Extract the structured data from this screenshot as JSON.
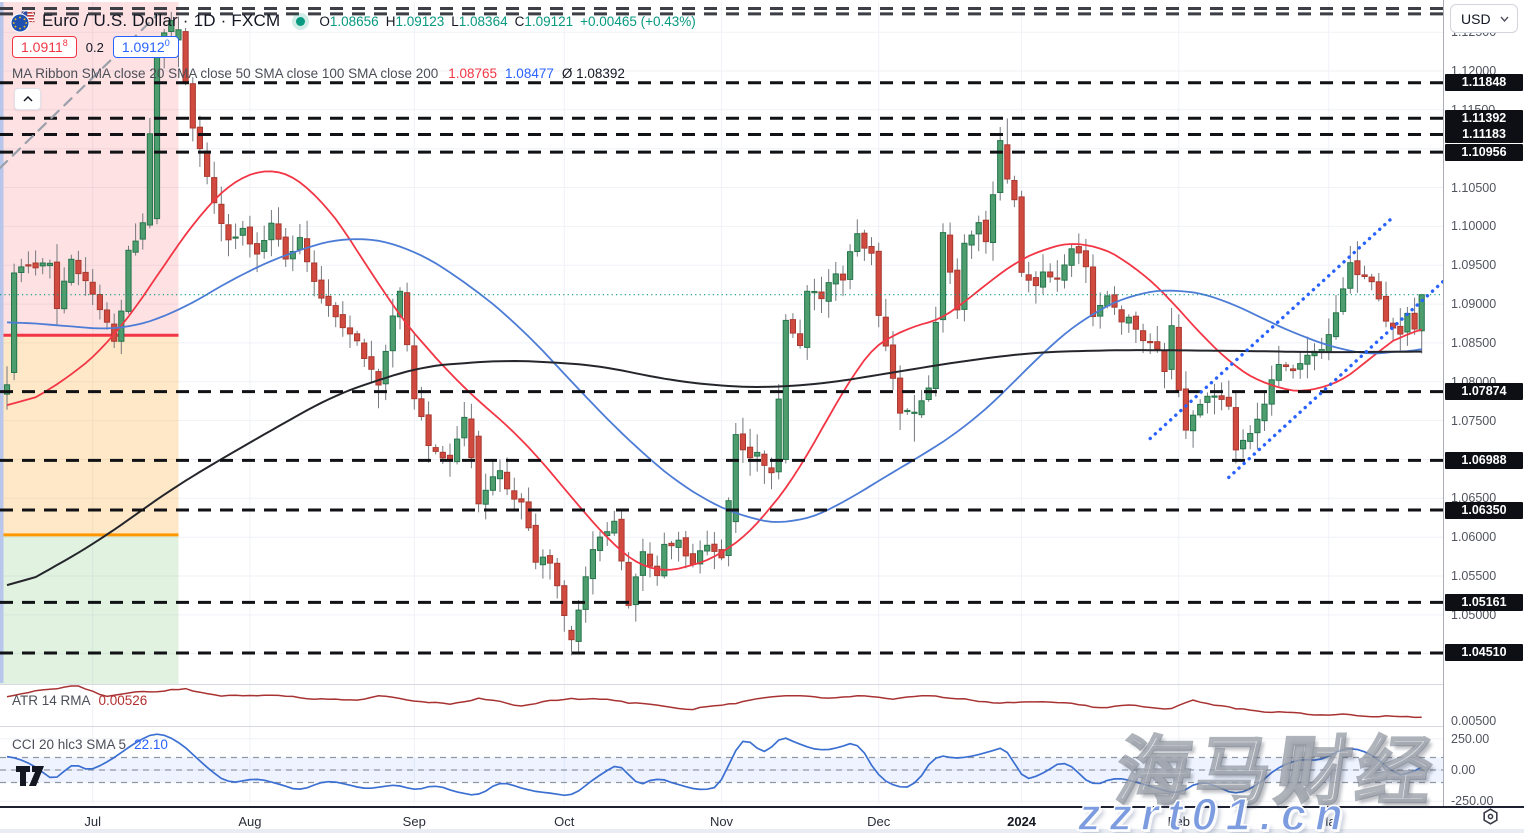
{
  "header": {
    "title": "Euro / U.S. Dollar · 1D · FXCM",
    "ohlc": {
      "o_label": "O",
      "o": "1.08656",
      "h_label": "H",
      "h": "1.09123",
      "l_label": "L",
      "l": "1.08364",
      "c_label": "C",
      "c": "1.09121",
      "change": "+0.00465 (+0.43%)"
    },
    "bid": {
      "main": "1.0911",
      "sup": "8"
    },
    "spread": "0.2",
    "ask": {
      "main": "1.0912",
      "sup": "0"
    },
    "ma_ribbon": {
      "label": "MA Ribbon SMA close 20 SMA close 50 SMA close 100 SMA close 200",
      "sma20": "1.08765",
      "sma50": "1.08477",
      "avg": "Ø 1.08392"
    }
  },
  "price_axis": {
    "currency": "USD",
    "gray_labels": [
      "1.12500",
      "1.12000",
      "1.11500",
      "1.10500",
      "1.10000",
      "1.09500",
      "1.09000",
      "1.08500",
      "1.08000",
      "1.07500",
      "1.06500",
      "1.06000",
      "1.05500",
      "1.05000"
    ],
    "badges": [
      "1.11848",
      "1.11392",
      "1.11183",
      "1.10956",
      "1.07874",
      "1.06988",
      "1.06350",
      "1.05161",
      "1.04510"
    ]
  },
  "indicators": {
    "atr": {
      "label": "ATR 14 RMA",
      "value": "0.00526",
      "axis_label": "0.00500"
    },
    "cci": {
      "label": "CCI 20 hlc3 SMA 5",
      "value": "22.10",
      "axis_labels": [
        "250.00",
        "0.00",
        "-250.00"
      ]
    }
  },
  "time_axis": {
    "months": [
      {
        "label": "Jul",
        "day": 12
      },
      {
        "label": "Aug",
        "day": 34
      },
      {
        "label": "Sep",
        "day": 57
      },
      {
        "label": "Oct",
        "day": 78
      },
      {
        "label": "Nov",
        "day": 100
      },
      {
        "label": "Dec",
        "day": 122
      },
      {
        "label": "2024",
        "day": 142,
        "year": true
      },
      {
        "label": "Feb",
        "day": 164
      },
      {
        "label": "Mar",
        "day": 185
      }
    ]
  },
  "watermark": {
    "brand": "海马财经",
    "url": "zzrt01.cn"
  },
  "colors": {
    "up_fill": "#4e9d6e",
    "up_border": "#27754c",
    "down_fill": "#d04a3f",
    "down_border": "#a93a31",
    "wick": "#75797e",
    "sma20": "#f23645",
    "sma50": "#4d7cd6",
    "sma200": "#24262b",
    "atr_line": "#a83232",
    "cci_line": "#3b6fd1",
    "level": "#101215",
    "level_top": "#3c3f46",
    "trend_blue": "#2962ff",
    "current": "#089981",
    "grid": "#f0f2f7",
    "band_fill": "rgba(41,98,255,0.08)",
    "band_line": "#9097a5",
    "zone_red": "rgba(242,54,69,0.15)",
    "zone_orange": "rgba(255,152,0,0.22)",
    "zone_green": "rgba(76,175,80,0.17)",
    "zone_red_line": "#f23645",
    "zone_orange_line": "#ff9800",
    "left_strip": "#b7c6ea",
    "diag": "#9aa0ab"
  },
  "chart_data": {
    "type": "candlestick",
    "symbol": "Euro / U.S. Dollar",
    "interval": "1D",
    "exchange": "FXCM",
    "days": 199,
    "visible_price_range": [
      1.0413,
      1.1291
    ],
    "price_tick_step": 0.005,
    "seed": 42,
    "last_candle": {
      "open": 1.08656,
      "high": 1.09123,
      "low": 1.08364,
      "close": 1.09121,
      "change": 0.00465,
      "change_pct": 0.43
    },
    "close_pivots": [
      [
        0,
        1.0795
      ],
      [
        1,
        1.094
      ],
      [
        3,
        1.0948
      ],
      [
        6,
        1.0955
      ],
      [
        7,
        1.0893
      ],
      [
        9,
        1.0958
      ],
      [
        12,
        1.091
      ],
      [
        14,
        1.088
      ],
      [
        15,
        1.0852
      ],
      [
        16,
        1.0889
      ],
      [
        17,
        1.0968
      ],
      [
        19,
        1.1005
      ],
      [
        21,
        1.1226
      ],
      [
        23,
        1.127
      ],
      [
        24,
        1.1253
      ],
      [
        26,
        1.113
      ],
      [
        28,
        1.1064
      ],
      [
        31,
        1.0979
      ],
      [
        33,
        1.0994
      ],
      [
        35,
        1.0965
      ],
      [
        37,
        1.1009
      ],
      [
        39,
        1.0957
      ],
      [
        41,
        1.0984
      ],
      [
        44,
        1.0905
      ],
      [
        47,
        1.0873
      ],
      [
        49,
        1.0855
      ],
      [
        52,
        1.0794
      ],
      [
        54,
        1.088
      ],
      [
        55,
        1.0921
      ],
      [
        56,
        1.0843
      ],
      [
        57,
        1.0779
      ],
      [
        59,
        1.0722
      ],
      [
        62,
        1.07
      ],
      [
        64,
        1.0753
      ],
      [
        66,
        1.0643
      ],
      [
        67,
        1.0658
      ],
      [
        69,
        1.0688
      ],
      [
        70,
        1.066
      ],
      [
        72,
        1.0645
      ],
      [
        74,
        1.0572
      ],
      [
        76,
        1.0566
      ],
      [
        78,
        1.05
      ],
      [
        79,
        1.0468
      ],
      [
        81,
        1.0548
      ],
      [
        82,
        1.0586
      ],
      [
        85,
        1.0621
      ],
      [
        87,
        1.051
      ],
      [
        89,
        1.0577
      ],
      [
        91,
        1.055
      ],
      [
        92,
        1.0593
      ],
      [
        94,
        1.0594
      ],
      [
        96,
        1.0562
      ],
      [
        98,
        1.0594
      ],
      [
        100,
        1.057
      ],
      [
        102,
        1.0732
      ],
      [
        104,
        1.07
      ],
      [
        105,
        1.0707
      ],
      [
        107,
        1.0684
      ],
      [
        109,
        1.0879
      ],
      [
        111,
        1.085
      ],
      [
        112,
        1.0915
      ],
      [
        114,
        1.0909
      ],
      [
        116,
        1.094
      ],
      [
        117,
        1.0935
      ],
      [
        119,
        1.0992
      ],
      [
        121,
        1.0963
      ],
      [
        122,
        1.0884
      ],
      [
        124,
        1.08
      ],
      [
        125,
        1.0763
      ],
      [
        127,
        1.0761
      ],
      [
        129,
        1.0797
      ],
      [
        130,
        1.0874
      ],
      [
        131,
        1.0992
      ],
      [
        133,
        1.0895
      ],
      [
        134,
        1.098
      ],
      [
        136,
        1.1008
      ],
      [
        137,
        1.0975
      ],
      [
        139,
        1.1105
      ],
      [
        140,
        1.1061
      ],
      [
        141,
        1.1038
      ],
      [
        142,
        1.0941
      ],
      [
        144,
        1.0925
      ],
      [
        145,
        1.0942
      ],
      [
        147,
        1.093
      ],
      [
        149,
        1.0973
      ],
      [
        151,
        1.095
      ],
      [
        152,
        1.0884
      ],
      [
        154,
        1.091
      ],
      [
        156,
        1.088
      ],
      [
        157,
        1.0885
      ],
      [
        159,
        1.0855
      ],
      [
        161,
        1.0845
      ],
      [
        162,
        1.0817
      ],
      [
        163,
        1.087
      ],
      [
        164,
        1.0789
      ],
      [
        165,
        1.0742
      ],
      [
        167,
        1.0776
      ],
      [
        169,
        1.0785
      ],
      [
        171,
        1.077
      ],
      [
        172,
        1.071
      ],
      [
        174,
        1.073
      ],
      [
        176,
        1.0775
      ],
      [
        178,
        1.0822
      ],
      [
        180,
        1.081
      ],
      [
        182,
        1.0838
      ],
      [
        184,
        1.0838
      ],
      [
        186,
        1.089
      ],
      [
        188,
        1.0948
      ],
      [
        189,
        1.0938
      ],
      [
        191,
        1.0925
      ],
      [
        193,
        1.0883
      ],
      [
        195,
        1.0865
      ],
      [
        196,
        1.0888
      ],
      [
        197,
        1.0866
      ],
      [
        198,
        1.09121
      ]
    ],
    "overrides": {
      "1": {
        "o": 1.0812,
        "c": 1.094,
        "l": 1.0802,
        "h": 1.0952
      },
      "21": {
        "o": 1.101,
        "c": 1.1226,
        "l": 1.1003,
        "h": 1.1235
      },
      "23": {
        "h": 1.1276
      },
      "24": {
        "o": 1.124,
        "c": 1.1253,
        "h": 1.127,
        "l": 1.1205
      },
      "52": {
        "l": 1.0766
      },
      "66": {
        "o": 1.073,
        "c": 1.0643,
        "l": 1.0632,
        "h": 1.0737
      },
      "79": {
        "o": 1.048,
        "c": 1.0468,
        "l": 1.0448
      },
      "102": {
        "o": 1.062,
        "c": 1.0732,
        "h": 1.0747
      },
      "109": {
        "o": 1.07,
        "c": 1.0879,
        "l": 1.0695,
        "h": 1.0887
      },
      "119": {
        "h": 1.1009
      },
      "127": {
        "l": 1.0723
      },
      "131": {
        "o": 1.088,
        "c": 1.0992,
        "h": 1.1004
      },
      "140": {
        "o": 1.1105,
        "c": 1.1061,
        "h": 1.1139,
        "l": 1.1055
      },
      "142": {
        "o": 1.1038,
        "c": 1.0941,
        "h": 1.1046,
        "l": 1.0935
      },
      "164": {
        "o": 1.087,
        "c": 1.0789,
        "l": 1.078
      },
      "172": {
        "l": 1.0695
      },
      "189": {
        "h": 1.0981
      },
      "198": {
        "o": 1.08656,
        "h": 1.09123,
        "l": 1.08364,
        "c": 1.09121
      }
    },
    "sma20": [
      [
        0,
        1.076
      ],
      [
        8,
        1.08
      ],
      [
        15,
        1.0855
      ],
      [
        22,
        1.095
      ],
      [
        28,
        1.103
      ],
      [
        33,
        1.1068
      ],
      [
        37,
        1.1078
      ],
      [
        42,
        1.1058
      ],
      [
        46,
        1.101
      ],
      [
        50,
        1.096
      ],
      [
        53,
        1.0905
      ],
      [
        57,
        1.0862
      ],
      [
        64,
        1.079
      ],
      [
        72,
        1.0729
      ],
      [
        80,
        1.064
      ],
      [
        86,
        1.0578
      ],
      [
        90,
        1.0552
      ],
      [
        95,
        1.056
      ],
      [
        101,
        1.058
      ],
      [
        106,
        1.0625
      ],
      [
        112,
        1.07
      ],
      [
        118,
        1.081
      ],
      [
        124,
        1.0872
      ],
      [
        128,
        1.0866
      ],
      [
        134,
        1.09
      ],
      [
        140,
        1.095
      ],
      [
        146,
        1.0975
      ],
      [
        151,
        1.0983
      ],
      [
        158,
        1.095
      ],
      [
        164,
        1.0895
      ],
      [
        170,
        1.083
      ],
      [
        177,
        1.079
      ],
      [
        184,
        1.0786
      ],
      [
        190,
        1.082
      ],
      [
        194,
        1.0858
      ],
      [
        198,
        1.0877
      ]
    ],
    "sma50": [
      [
        0,
        1.0878
      ],
      [
        8,
        1.0872
      ],
      [
        16,
        1.0866
      ],
      [
        24,
        1.089
      ],
      [
        32,
        1.0935
      ],
      [
        40,
        1.0968
      ],
      [
        48,
        1.0988
      ],
      [
        56,
        1.0975
      ],
      [
        64,
        1.093
      ],
      [
        72,
        1.087
      ],
      [
        80,
        1.079
      ],
      [
        88,
        1.0715
      ],
      [
        96,
        1.0655
      ],
      [
        104,
        1.0622
      ],
      [
        110,
        1.0616
      ],
      [
        116,
        1.0638
      ],
      [
        122,
        1.0673
      ],
      [
        128,
        1.0705
      ],
      [
        134,
        1.074
      ],
      [
        140,
        1.079
      ],
      [
        146,
        1.0848
      ],
      [
        152,
        1.089
      ],
      [
        158,
        1.0915
      ],
      [
        164,
        1.092
      ],
      [
        170,
        1.0908
      ],
      [
        176,
        1.088
      ],
      [
        182,
        1.0855
      ],
      [
        188,
        1.0838
      ],
      [
        193,
        1.0833
      ],
      [
        198,
        1.0848
      ]
    ],
    "sma200": [
      [
        0,
        1.0528
      ],
      [
        12,
        1.059
      ],
      [
        24,
        1.0668
      ],
      [
        34,
        1.0722
      ],
      [
        46,
        1.0784
      ],
      [
        58,
        1.082
      ],
      [
        70,
        1.0828
      ],
      [
        82,
        1.0822
      ],
      [
        94,
        1.08
      ],
      [
        104,
        1.0792
      ],
      [
        114,
        1.0797
      ],
      [
        124,
        1.0812
      ],
      [
        134,
        1.0827
      ],
      [
        144,
        1.0838
      ],
      [
        156,
        1.0841
      ],
      [
        170,
        1.084
      ],
      [
        185,
        1.0838
      ],
      [
        198,
        1.0839
      ]
    ],
    "atr14": [
      [
        0,
        0.0071
      ],
      [
        5,
        0.0078
      ],
      [
        10,
        0.0081
      ],
      [
        14,
        0.0072
      ],
      [
        19,
        0.0076
      ],
      [
        25,
        0.0078
      ],
      [
        30,
        0.0072
      ],
      [
        36,
        0.0073
      ],
      [
        42,
        0.007
      ],
      [
        48,
        0.0068
      ],
      [
        52,
        0.0072
      ],
      [
        57,
        0.0068
      ],
      [
        62,
        0.0064
      ],
      [
        66,
        0.007
      ],
      [
        72,
        0.0063
      ],
      [
        79,
        0.007
      ],
      [
        85,
        0.0068
      ],
      [
        90,
        0.0064
      ],
      [
        96,
        0.006
      ],
      [
        102,
        0.0066
      ],
      [
        109,
        0.0073
      ],
      [
        114,
        0.007
      ],
      [
        119,
        0.0072
      ],
      [
        124,
        0.007
      ],
      [
        130,
        0.0072
      ],
      [
        136,
        0.0067
      ],
      [
        141,
        0.0066
      ],
      [
        146,
        0.0067
      ],
      [
        152,
        0.0062
      ],
      [
        158,
        0.0063
      ],
      [
        163,
        0.006
      ],
      [
        166,
        0.0068
      ],
      [
        172,
        0.006
      ],
      [
        178,
        0.0057
      ],
      [
        184,
        0.0055
      ],
      [
        190,
        0.0054
      ],
      [
        194,
        0.0053
      ],
      [
        198,
        0.00526
      ]
    ],
    "cci20": [
      [
        0,
        120
      ],
      [
        3,
        60
      ],
      [
        7,
        -100
      ],
      [
        9,
        80
      ],
      [
        11,
        -15
      ],
      [
        14,
        60
      ],
      [
        18,
        220
      ],
      [
        21,
        306
      ],
      [
        24,
        230
      ],
      [
        28,
        20
      ],
      [
        31,
        -107
      ],
      [
        35,
        -66
      ],
      [
        41,
        -164
      ],
      [
        45,
        -80
      ],
      [
        50,
        -150
      ],
      [
        55,
        -120
      ],
      [
        57,
        -170
      ],
      [
        60,
        -120
      ],
      [
        63,
        -175
      ],
      [
        66,
        -210
      ],
      [
        69,
        -95
      ],
      [
        73,
        -160
      ],
      [
        79,
        -215
      ],
      [
        83,
        -40
      ],
      [
        86,
        60
      ],
      [
        88,
        -130
      ],
      [
        91,
        -60
      ],
      [
        94,
        -120
      ],
      [
        97,
        -160
      ],
      [
        100,
        -130
      ],
      [
        102,
        200
      ],
      [
        104,
        258
      ],
      [
        106,
        90
      ],
      [
        108,
        282
      ],
      [
        111,
        200
      ],
      [
        114,
        150
      ],
      [
        117,
        190
      ],
      [
        119,
        235
      ],
      [
        122,
        -60
      ],
      [
        125,
        -150
      ],
      [
        127,
        -130
      ],
      [
        130,
        130
      ],
      [
        132,
        90
      ],
      [
        135,
        110
      ],
      [
        137,
        140
      ],
      [
        140,
        190
      ],
      [
        142,
        -80
      ],
      [
        145,
        -30
      ],
      [
        148,
        80
      ],
      [
        152,
        -130
      ],
      [
        155,
        -60
      ],
      [
        158,
        -95
      ],
      [
        161,
        -150
      ],
      [
        164,
        -190
      ],
      [
        167,
        -90
      ],
      [
        169,
        -120
      ],
      [
        172,
        -200
      ],
      [
        175,
        -120
      ],
      [
        178,
        30
      ],
      [
        181,
        90
      ],
      [
        184,
        70
      ],
      [
        186,
        150
      ],
      [
        188,
        177
      ],
      [
        190,
        153
      ],
      [
        192,
        80
      ],
      [
        194,
        -20
      ],
      [
        196,
        -60
      ],
      [
        197,
        20
      ],
      [
        198,
        22.1
      ]
    ],
    "atr_current": 0.00526,
    "cci_current": 22.1,
    "cci_band": [
      100,
      -100
    ],
    "levels_labeled": [
      1.11848,
      1.11392,
      1.11183,
      1.10956,
      1.07874,
      1.06988,
      1.0635,
      1.05161,
      1.0451
    ],
    "levels_unlabeled": [
      1.12805,
      1.12735
    ],
    "current_price": 1.09121,
    "zones": [
      {
        "name": "supply-red",
        "top": 1.1295,
        "bottom": 1.086
      },
      {
        "name": "mid-orange",
        "top": 1.086,
        "bottom": 1.0603
      },
      {
        "name": "demand-green",
        "top": 1.0603,
        "bottom": 1.041
      }
    ],
    "zone_lines": [
      {
        "price": 1.086,
        "color_key": "zone_red_line"
      },
      {
        "price": 1.0603,
        "color_key": "zone_orange_line"
      }
    ],
    "zone_right_edge_day": 24,
    "trendlines": [
      {
        "style": "dashed",
        "color_key": "diag",
        "from": [
          -1,
          1.1075
        ],
        "to": [
          21,
          1.1272
        ]
      },
      {
        "style": "dotted",
        "color_key": "trend_blue",
        "from": [
          160,
          1.0727
        ],
        "to": [
          194,
          1.1012
        ]
      },
      {
        "style": "dotted",
        "color_key": "trend_blue",
        "from": [
          171,
          1.0677
        ],
        "to": [
          203,
          1.0946
        ]
      }
    ]
  }
}
